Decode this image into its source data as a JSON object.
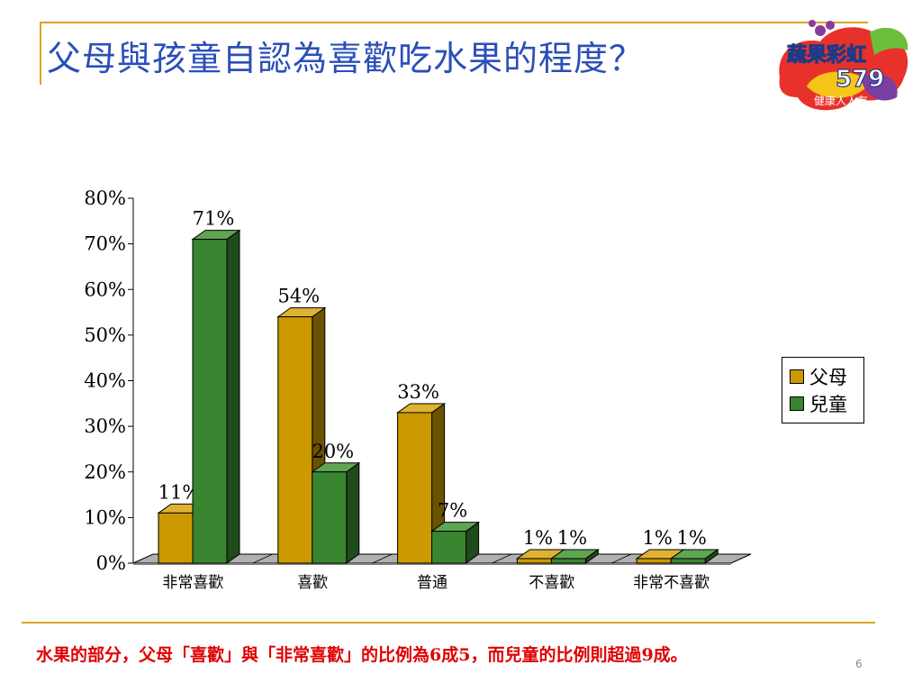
{
  "slide": {
    "title": "父母與孩童自認為喜歡吃水果的程度？",
    "note": "水果的部分，父母「喜歡」與「非常喜歡」的比例為6成5，而兒童的比例則超過9成。",
    "page_number": "6"
  },
  "logo": {
    "line1": "蔬果彩虹",
    "line2": "579",
    "line3": "健康人人有"
  },
  "colors": {
    "parent": "#cc9900",
    "parent_side": "#6b5200",
    "parent_top": "#e0b233",
    "child": "#3a8530",
    "child_side": "#1f4a1b",
    "child_top": "#5fa552",
    "title": "#2a4fb8",
    "note": "#e00000",
    "rule": "#d9a520"
  },
  "chart_data": {
    "type": "bar",
    "categories": [
      "非常喜歡",
      "喜歡",
      "普通",
      "不喜歡",
      "非常不喜歡"
    ],
    "series": [
      {
        "name": "父母",
        "values": [
          11,
          54,
          33,
          1,
          1
        ],
        "labels": [
          "11%",
          "54%",
          "33%",
          "1%",
          "1%"
        ]
      },
      {
        "name": "兒童",
        "values": [
          71,
          20,
          7,
          1,
          1
        ],
        "labels": [
          "71%",
          "20%",
          "7%",
          "1%",
          "1%"
        ]
      }
    ],
    "yticks": [
      "0%",
      "10%",
      "20%",
      "30%",
      "40%",
      "50%",
      "60%",
      "70%",
      "80%"
    ],
    "ylim": [
      0,
      80
    ],
    "legend": "right",
    "style": "3d"
  }
}
